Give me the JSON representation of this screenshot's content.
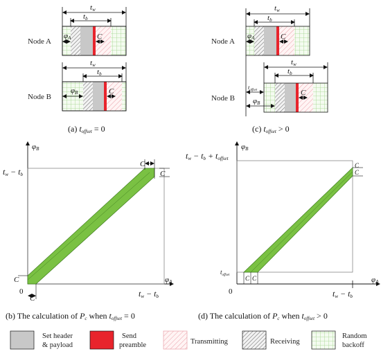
{
  "labels": {
    "node_a": "Node A",
    "node_b": "Node B",
    "t_w": "t",
    "t_w_sub": "w",
    "t_b": "t",
    "t_b_sub": "b",
    "c": "C",
    "phi": "φ",
    "phi_a_sub": "A",
    "phi_b_sub": "B",
    "t_offset": "t",
    "t_offset_sub": "offset",
    "zero": "0"
  },
  "captions": {
    "a_prefix": "(a) ",
    "a_suffix": " = 0",
    "c_prefix": "(c) ",
    "c_suffix": " > 0",
    "b_text": "(b) The calculation of ",
    "when": " when ",
    "b_suffix": " = 0",
    "d_text": "(d) The calculation of ",
    "d_suffix": " > 0",
    "p": "P",
    "p_sub": "c"
  },
  "axis_labels": {
    "b_y_tick": "t",
    "b_y_tick_full": [
      "t",
      "w",
      " − t",
      "b"
    ],
    "d_y_tick_full": [
      "t",
      "w",
      " − t",
      "b",
      " + t",
      "offset"
    ]
  },
  "legend": [
    {
      "name": "header",
      "label_lines": [
        "Set header",
        "& payload"
      ],
      "color": "#c8c8c8",
      "pattern": "solid"
    },
    {
      "name": "send",
      "label_lines": [
        "Send",
        "preamble"
      ],
      "color": "#e8242c",
      "pattern": "solid"
    },
    {
      "name": "transmitting",
      "label_lines": [
        "Transmitting"
      ],
      "color": "#e9a0a8",
      "pattern": "hatch"
    },
    {
      "name": "receiving",
      "label_lines": [
        "Receiving"
      ],
      "color": "#555555",
      "pattern": "hatch"
    },
    {
      "name": "backoff",
      "label_lines": [
        "Random",
        "backoff"
      ],
      "color": "#9fd488",
      "pattern": "grid"
    }
  ],
  "colors": {
    "band": "#7ac143",
    "band_edge": "#3f7d1e",
    "header": "#c8c8c8",
    "preamble": "#e8242c",
    "grid": "#9fd488"
  }
}
